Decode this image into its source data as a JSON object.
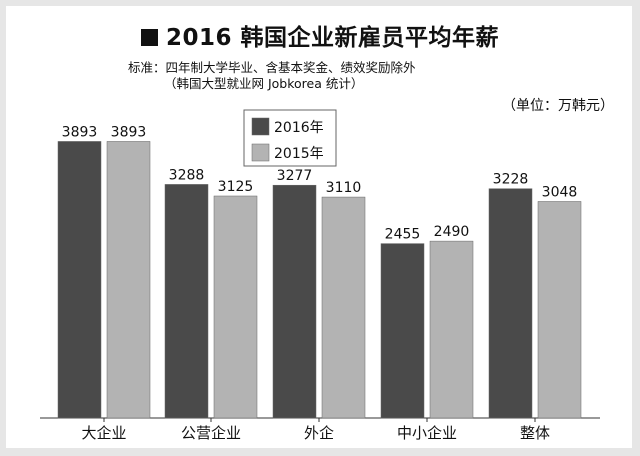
{
  "header": {
    "title": "2016 韩国企业新雇员平均年薪",
    "note_line1": "标准：四年制大学毕业、含基本奖金、绩效奖励除外",
    "note_line2": "（韩国大型就业网 Jobkorea 统计）",
    "unit": "（单位：万韩元）"
  },
  "chart_data": {
    "type": "bar",
    "title": "2016 韩国企业新雇员平均年薪",
    "categories": [
      "大企业",
      "公营企业",
      "外企",
      "中小企业",
      "整体"
    ],
    "series": [
      {
        "name": "2016年",
        "values": [
          3893,
          3288,
          3277,
          2455,
          3228
        ],
        "color": "#4a4a4a"
      },
      {
        "name": "2015年",
        "values": [
          3893,
          3125,
          3110,
          2490,
          3048
        ],
        "color": "#b3b3b3"
      }
    ],
    "ylim": [
      0,
      4040
    ],
    "grid": false,
    "legend_position": "top-left-center",
    "ylabel": "",
    "xlabel": ""
  }
}
